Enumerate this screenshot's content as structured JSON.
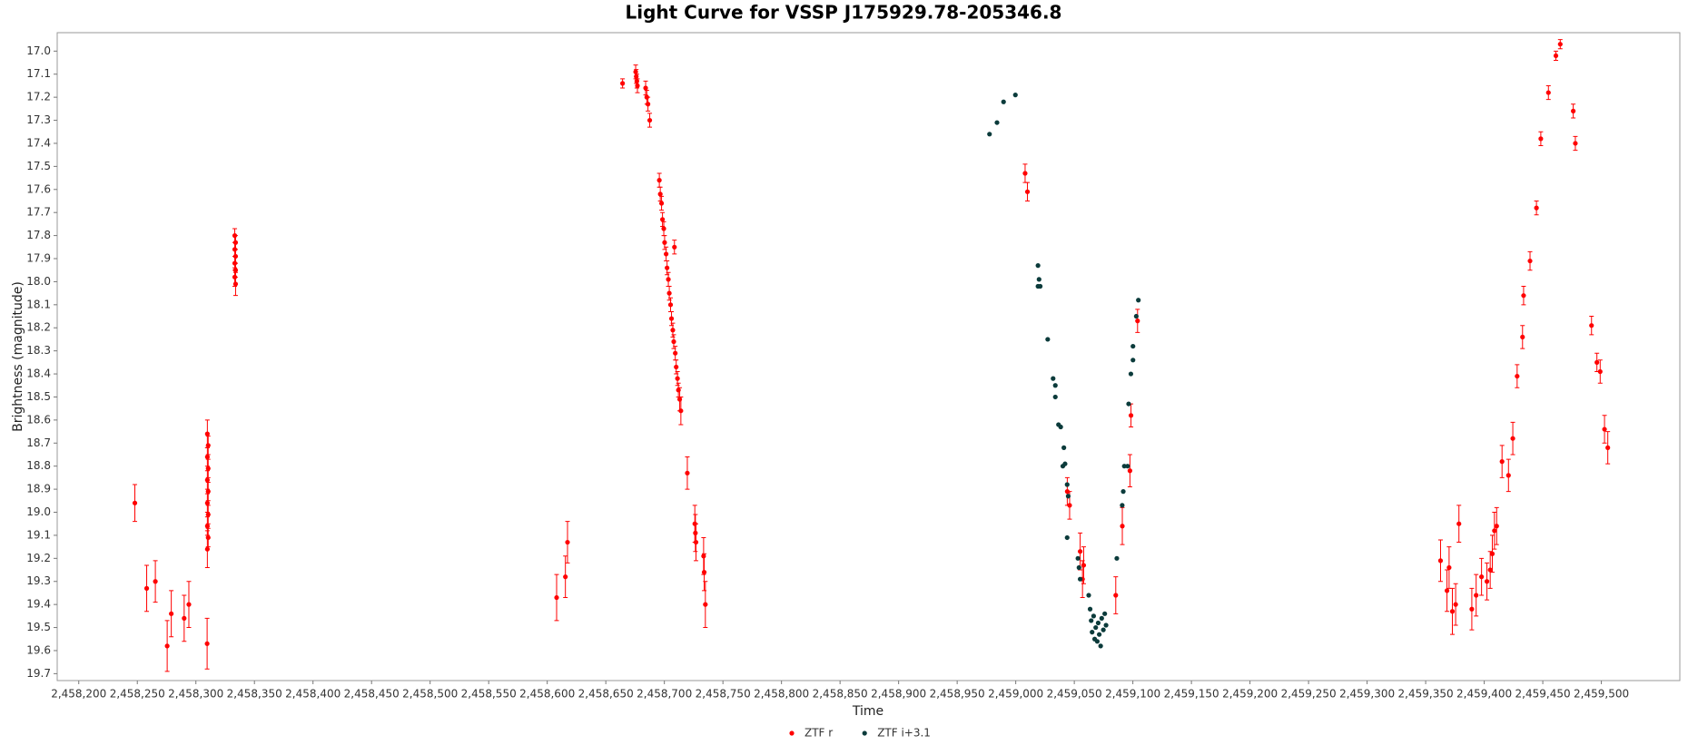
{
  "chart_data": {
    "type": "scatter",
    "title": "Light Curve for VSSP J175929.78-205346.8",
    "xlabel": "Time",
    "ylabel": "Brightness (magnitude)",
    "xlim": [
      2458181.6,
      2459567
    ],
    "ylim": [
      16.92,
      19.73
    ],
    "y_inverted": true,
    "grid": false,
    "legend": "bottom",
    "xticks": [
      {
        "value": 2458200,
        "label": "2,458,200"
      },
      {
        "value": 2458250,
        "label": "2,458,250"
      },
      {
        "value": 2458300,
        "label": "2,458,300"
      },
      {
        "value": 2458350,
        "label": "2,458,350"
      },
      {
        "value": 2458400,
        "label": "2,458,400"
      },
      {
        "value": 2458450,
        "label": "2,458,450"
      },
      {
        "value": 2458500,
        "label": "2,458,500"
      },
      {
        "value": 2458550,
        "label": "2,458,550"
      },
      {
        "value": 2458600,
        "label": "2,458,600"
      },
      {
        "value": 2458650,
        "label": "2,458,650"
      },
      {
        "value": 2458700,
        "label": "2,458,700"
      },
      {
        "value": 2458750,
        "label": "2,458,750"
      },
      {
        "value": 2458800,
        "label": "2,458,800"
      },
      {
        "value": 2458850,
        "label": "2,458,850"
      },
      {
        "value": 2458900,
        "label": "2,458,900"
      },
      {
        "value": 2458950,
        "label": "2,458,950"
      },
      {
        "value": 2459000,
        "label": "2,459,000"
      },
      {
        "value": 2459050,
        "label": "2,459,050"
      },
      {
        "value": 2459100,
        "label": "2,459,100"
      },
      {
        "value": 2459150,
        "label": "2,459,150"
      },
      {
        "value": 2459200,
        "label": "2,459,200"
      },
      {
        "value": 2459250,
        "label": "2,459,250"
      },
      {
        "value": 2459300,
        "label": "2,459,300"
      },
      {
        "value": 2459350,
        "label": "2,459,350"
      },
      {
        "value": 2459400,
        "label": "2,459,400"
      },
      {
        "value": 2459450,
        "label": "2,459,450"
      },
      {
        "value": 2459500,
        "label": "2,459,500"
      }
    ],
    "yticks": [
      {
        "value": 17,
        "label": "17.0"
      },
      17.1,
      17.2,
      17.3,
      17.4,
      17.5,
      17.6,
      17.7,
      17.8,
      17.9,
      {
        "value": 18,
        "label": "18.0"
      },
      18.1,
      18.2,
      18.3,
      18.4,
      18.5,
      18.6,
      18.7,
      18.8,
      18.9,
      {
        "value": 19,
        "label": "19.0"
      },
      19.1,
      19.2,
      19.3,
      19.4,
      19.5,
      19.6,
      19.7
    ],
    "series": [
      {
        "name": "ZTF r",
        "color": "#ff0000",
        "x": [
          2458247.9,
          2458258.0,
          2458265.4,
          2458275.5,
          2458279.0,
          2458290.0,
          2458294.0,
          2458309.6,
          2458309.8,
          2458310.5,
          2458309.8,
          2458310.5,
          2458309.8,
          2458310.5,
          2458309.8,
          2458310.5,
          2458309.8,
          2458310.5,
          2458309.8,
          2458333.2,
          2458333.9,
          2458333.2,
          2458333.9,
          2458333.2,
          2458333.9,
          2458333.2,
          2458333.9,
          2458608.0,
          2458615.5,
          2458617.3,
          2458664.3,
          2458675.5,
          2458676.0,
          2458676.5,
          2458677.0,
          2458684.0,
          2458685.0,
          2458686.0,
          2458687.5,
          2458695.7,
          2458696.5,
          2458697.6,
          2458698.4,
          2458699.5,
          2458700.2,
          2458701.5,
          2458702.3,
          2458703.4,
          2458704.2,
          2458705.3,
          2458706.1,
          2458707.2,
          2458708.0,
          2458709.3,
          2458710.1,
          2458711.2,
          2458712.0,
          2458713.1,
          2458714.1,
          2458708.6,
          2458719.6,
          2458726.0,
          2458726.5,
          2458727.0,
          2458733.5,
          2458734.0,
          2458735.0,
          2459008.0,
          2459010.0,
          2459044.0,
          2459046.0,
          2459055.0,
          2459057.0,
          2459058.0,
          2459085.4,
          2459091.0,
          2459097.5,
          2459098.4,
          2459104.0,
          2459362.7,
          2459368.2,
          2459370.0,
          2459372.8,
          2459375.6,
          2459378.4,
          2459389.4,
          2459393.1,
          2459397.7,
          2459402.3,
          2459405.1,
          2459406.9,
          2459408.7,
          2459410.6,
          2459415.2,
          2459420.7,
          2459424.4,
          2459428.1,
          2459432.7,
          2459433.6,
          2459439.1,
          2459444.6,
          2459448.3,
          2459454.8,
          2459461.2,
          2459464.9,
          2459476.0,
          2459477.8,
          2459491.6,
          2459496.2,
          2459499.0,
          2459502.7,
          2459505.5
        ],
        "values": [
          18.96,
          19.33,
          19.3,
          19.58,
          19.44,
          19.46,
          19.4,
          19.57,
          18.66,
          18.71,
          18.76,
          18.81,
          18.86,
          18.91,
          18.96,
          19.01,
          19.06,
          19.11,
          19.16,
          17.8,
          17.83,
          17.86,
          17.89,
          17.92,
          17.95,
          17.98,
          18.01,
          19.37,
          19.28,
          19.13,
          17.14,
          17.09,
          17.11,
          17.13,
          17.15,
          17.16,
          17.2,
          17.23,
          17.3,
          17.56,
          17.62,
          17.66,
          17.73,
          17.77,
          17.83,
          17.88,
          17.94,
          17.99,
          18.05,
          18.1,
          18.16,
          18.21,
          18.26,
          18.31,
          18.37,
          18.42,
          18.47,
          18.51,
          18.56,
          17.85,
          18.83,
          19.05,
          19.09,
          19.13,
          19.19,
          19.26,
          19.4,
          17.53,
          17.61,
          18.91,
          18.97,
          19.17,
          19.29,
          19.23,
          19.36,
          19.06,
          18.82,
          18.58,
          18.17,
          19.21,
          19.34,
          19.24,
          19.43,
          19.4,
          19.05,
          19.42,
          19.36,
          19.28,
          19.3,
          19.25,
          19.18,
          19.08,
          19.06,
          18.78,
          18.84,
          18.68,
          18.41,
          18.24,
          18.06,
          17.91,
          17.68,
          17.38,
          17.18,
          17.02,
          16.97,
          17.26,
          17.4,
          18.19,
          18.35,
          18.39,
          18.64,
          18.72
        ],
        "errors": [
          0.08,
          0.1,
          0.09,
          0.11,
          0.1,
          0.1,
          0.1,
          0.11,
          0.06,
          0.04,
          0.04,
          0.04,
          0.04,
          0.04,
          0.04,
          0.04,
          0.04,
          0.04,
          0.08,
          0.03,
          0.03,
          0.03,
          0.03,
          0.03,
          0.03,
          0.04,
          0.05,
          0.1,
          0.09,
          0.09,
          0.02,
          0.03,
          0.03,
          0.03,
          0.03,
          0.03,
          0.03,
          0.03,
          0.03,
          0.03,
          0.03,
          0.03,
          0.03,
          0.03,
          0.03,
          0.03,
          0.03,
          0.03,
          0.03,
          0.03,
          0.03,
          0.03,
          0.03,
          0.03,
          0.03,
          0.03,
          0.03,
          0.05,
          0.06,
          0.03,
          0.07,
          0.08,
          0.08,
          0.08,
          0.08,
          0.08,
          0.1,
          0.04,
          0.04,
          0.06,
          0.06,
          0.08,
          0.08,
          0.08,
          0.08,
          0.08,
          0.07,
          0.05,
          0.05,
          0.09,
          0.09,
          0.09,
          0.1,
          0.09,
          0.08,
          0.09,
          0.09,
          0.08,
          0.08,
          0.08,
          0.08,
          0.08,
          0.08,
          0.07,
          0.07,
          0.07,
          0.05,
          0.05,
          0.04,
          0.04,
          0.03,
          0.03,
          0.03,
          0.02,
          0.02,
          0.03,
          0.03,
          0.04,
          0.04,
          0.05,
          0.06,
          0.07
        ]
      },
      {
        "name": "ZTF i+3.1",
        "color": "#0b3b3b",
        "x": [
          2458977.6,
          2458984.0,
          2458989.6,
          2458999.7,
          2459019.0,
          2459019.9,
          2459019.0,
          2459020.9,
          2459027.3,
          2459031.9,
          2459033.8,
          2459033.8,
          2459036.5,
          2459038.4,
          2459041.1,
          2459042.1,
          2459040.2,
          2459043.9,
          2459044.8,
          2459043.9,
          2459053.1,
          2459054.0,
          2459055.0,
          2459062.3,
          2459063.5,
          2459064.4,
          2459065.2,
          2459066.5,
          2459067.4,
          2459068.3,
          2459069.6,
          2459070.4,
          2459071.3,
          2459072.5,
          2459073.4,
          2459074.8,
          2459076.0,
          2459077.1,
          2459086.3,
          2459090.9,
          2459091.8,
          2459092.7,
          2459095.5,
          2459096.4,
          2459098.3,
          2459100.1,
          2459100.1,
          2459102.9,
          2459104.7
        ],
        "values": [
          17.36,
          17.31,
          17.22,
          17.19,
          17.93,
          17.99,
          18.02,
          18.02,
          18.25,
          18.42,
          18.45,
          18.5,
          18.62,
          18.63,
          18.72,
          18.79,
          18.8,
          18.88,
          18.93,
          19.11,
          19.2,
          19.24,
          19.29,
          19.36,
          19.42,
          19.47,
          19.52,
          19.45,
          19.55,
          19.5,
          19.56,
          19.48,
          19.53,
          19.58,
          19.46,
          19.51,
          19.44,
          19.49,
          19.2,
          18.97,
          18.91,
          18.8,
          18.8,
          18.53,
          18.4,
          18.34,
          18.28,
          18.15,
          18.08
        ]
      }
    ]
  }
}
